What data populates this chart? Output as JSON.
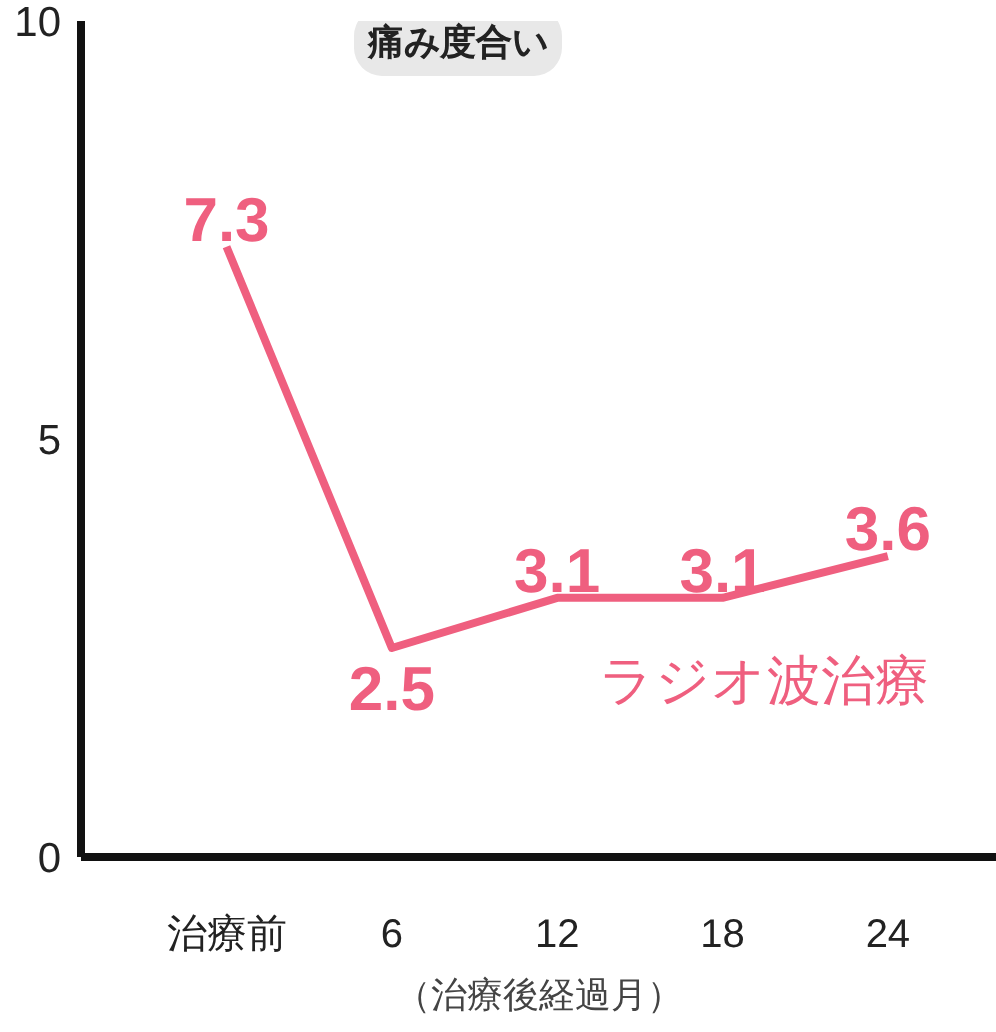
{
  "chart_data": {
    "type": "line",
    "title": "痛み度合い",
    "xlabel": "（治療後経過月）",
    "categories": [
      "治療前",
      "6",
      "12",
      "18",
      "24"
    ],
    "series": [
      {
        "name": "ラジオ波治療",
        "color": "#ef5f7f",
        "values": [
          7.3,
          2.5,
          3.1,
          3.1,
          3.6
        ]
      }
    ],
    "ylim": [
      0,
      10
    ],
    "yticks": [
      0,
      5,
      10
    ],
    "grid": false,
    "legend": false,
    "data_labels": true,
    "marker": "none",
    "line_style": "solid"
  }
}
